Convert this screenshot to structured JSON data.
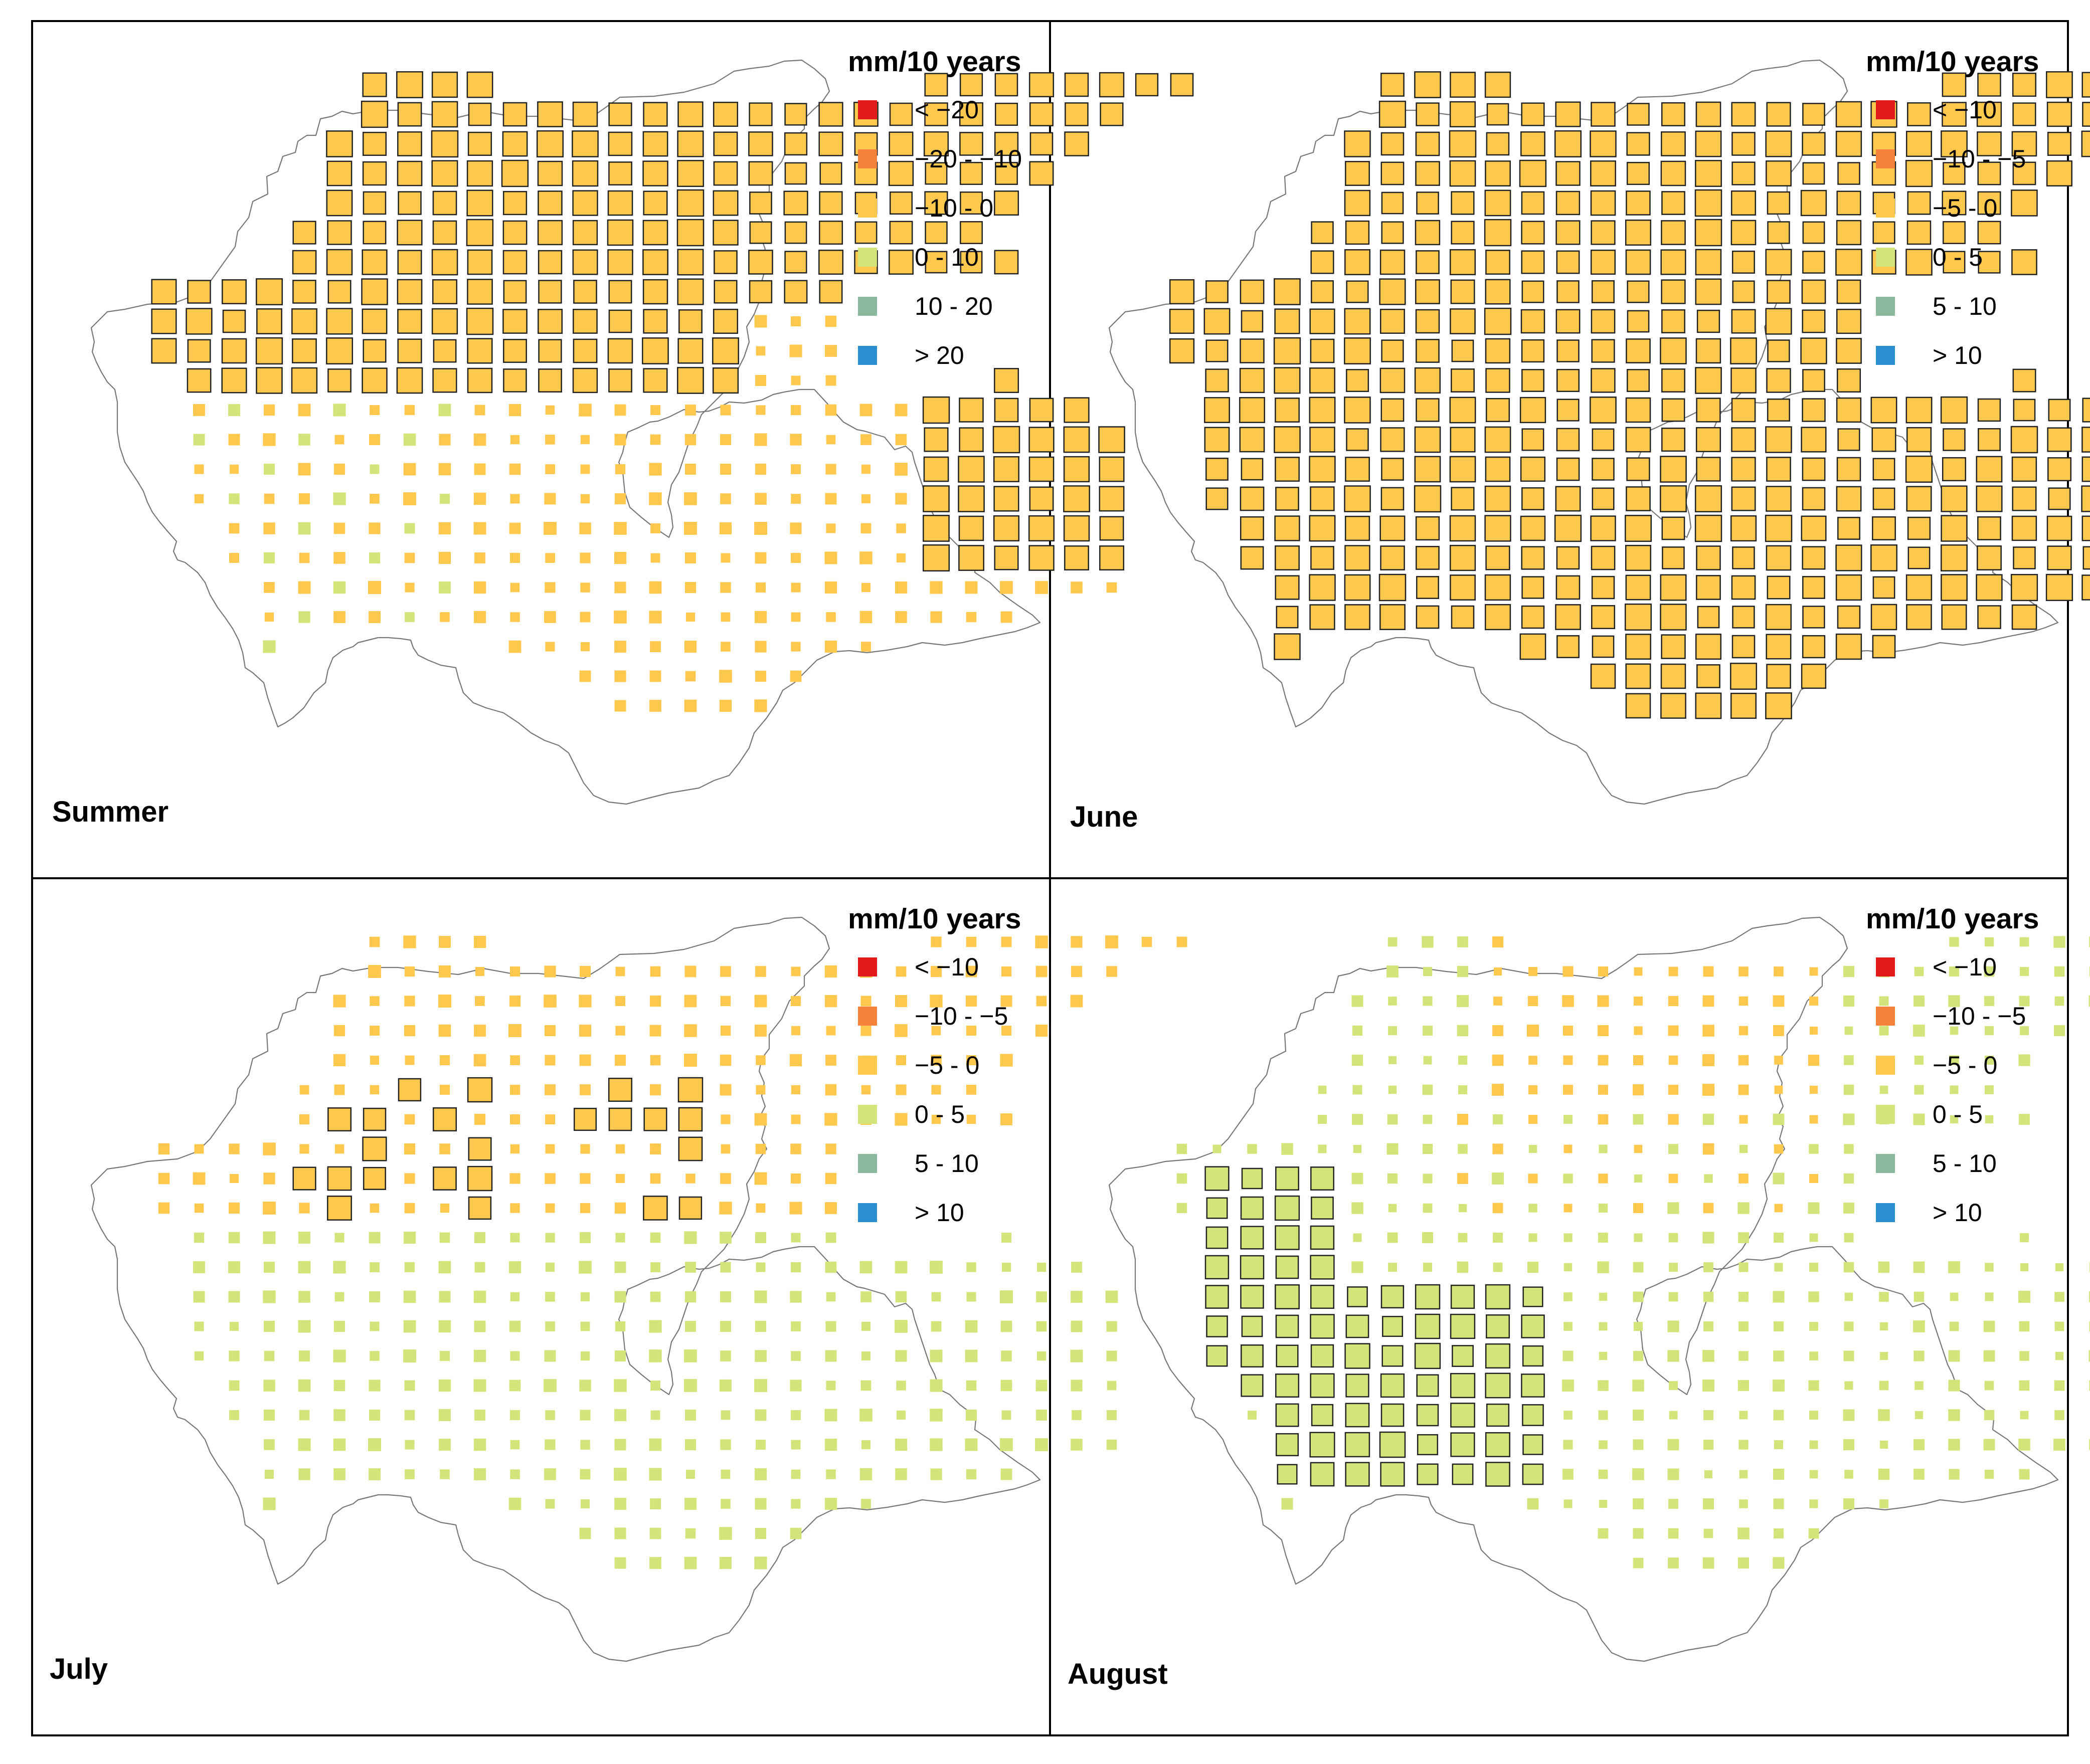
{
  "figure": {
    "legend_title": "mm/10 years",
    "panels": [
      {
        "id": "summer",
        "label": "Summer",
        "legend": [
          {
            "label": "< −20",
            "color": "#e31a1c"
          },
          {
            "label": "−20 - −10",
            "color": "#f5813b"
          },
          {
            "label": "−10 - 0",
            "color": "#fdc84e"
          },
          {
            "label": "0 - 10",
            "color": "#d4e47a"
          },
          {
            "label": "10 - 20",
            "color": "#89b89c"
          },
          {
            "label": "> 20",
            "color": "#2b8fcf"
          }
        ]
      },
      {
        "id": "june",
        "label": "June",
        "legend": [
          {
            "label": "< −10",
            "color": "#e31a1c"
          },
          {
            "label": "−10 - −5",
            "color": "#f5813b"
          },
          {
            "label": "−5 - 0",
            "color": "#fdc84e"
          },
          {
            "label": "0 - 5",
            "color": "#d4e47a"
          },
          {
            "label": "5 - 10",
            "color": "#89b89c"
          },
          {
            "label": "> 10",
            "color": "#2b8fcf"
          }
        ]
      },
      {
        "id": "july",
        "label": "July",
        "legend": [
          {
            "label": "< −10",
            "color": "#e31a1c"
          },
          {
            "label": "−10 - −5",
            "color": "#f5813b"
          },
          {
            "label": "−5 - 0",
            "color": "#fdc84e"
          },
          {
            "label": "0 - 5",
            "color": "#d4e47a"
          },
          {
            "label": "5 - 10",
            "color": "#89b89c"
          },
          {
            "label": "> 10",
            "color": "#2b8fcf"
          }
        ]
      },
      {
        "id": "august",
        "label": "August",
        "legend": [
          {
            "label": "< −10",
            "color": "#e31a1c"
          },
          {
            "label": "−10 - −5",
            "color": "#f5813b"
          },
          {
            "label": "−5 - 0",
            "color": "#fdc84e"
          },
          {
            "label": "0 - 5",
            "color": "#d4e47a"
          },
          {
            "label": "5 - 10",
            "color": "#89b89c"
          },
          {
            "label": "> 10",
            "color": "#2b8fcf"
          }
        ]
      }
    ]
  }
}
